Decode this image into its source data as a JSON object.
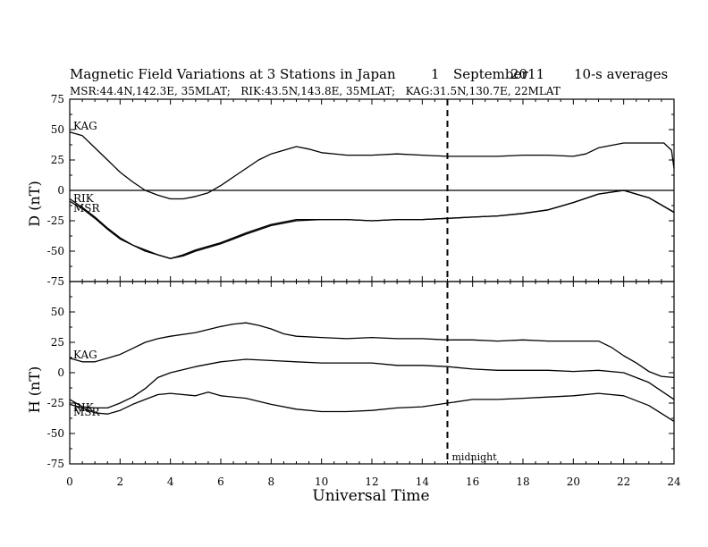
{
  "chart_data": [
    {
      "type": "line",
      "title": "Magnetic Field Variations at 3 Stations in Japan",
      "date_day": "1",
      "date_month": "September",
      "date_year": "2011",
      "averaging": "10-s averages",
      "subtitle": "MSR:44.4N,142.3E, 35MLAT;   RIK:43.5N,143.8E, 35MLAT;   KAG:31.5N,130.7E, 22MLAT",
      "xlabel": "Universal Time",
      "ylabel": "D (nT)",
      "xlim": [
        0,
        24
      ],
      "ylim": [
        -75,
        75
      ],
      "x_ticks": [
        0,
        2,
        4,
        6,
        8,
        10,
        12,
        14,
        16,
        18,
        20,
        22,
        24
      ],
      "y_ticks": [
        75,
        50,
        25,
        0,
        -25,
        -50,
        -75
      ],
      "zero_line": true,
      "grid": false,
      "series": [
        {
          "name": "KAG",
          "color": "#000000",
          "x": [
            0,
            0.5,
            1,
            1.5,
            2,
            2.5,
            3,
            3.5,
            4,
            4.5,
            5,
            5.5,
            6,
            6.5,
            7,
            7.5,
            8,
            8.5,
            9,
            9.5,
            10,
            11,
            12,
            13,
            14,
            15,
            16,
            17,
            18,
            19,
            20,
            20.5,
            21,
            22,
            23,
            23.6,
            23.9,
            24
          ],
          "values": [
            48,
            45,
            35,
            25,
            15,
            7,
            0,
            -4,
            -7,
            -7,
            -5,
            -2,
            4,
            11,
            18,
            25,
            30,
            33,
            36,
            34,
            31,
            29,
            29,
            30,
            29,
            28,
            28,
            28,
            29,
            29,
            28,
            30,
            35,
            39,
            39,
            39,
            33,
            18
          ]
        },
        {
          "name": "RIK",
          "color": "#000000",
          "x": [
            0,
            0.5,
            1,
            1.5,
            2,
            2.5,
            3,
            3.5,
            4,
            4.5,
            5,
            6,
            7,
            8,
            9,
            10,
            11,
            12,
            13,
            14,
            15,
            16,
            17,
            18,
            19,
            20,
            21,
            22,
            23,
            24
          ],
          "values": [
            -7,
            -14,
            -22,
            -31,
            -39,
            -45,
            -49,
            -53,
            -56,
            -53,
            -49,
            -43,
            -35,
            -28,
            -24,
            -24,
            -24,
            -25,
            -24,
            -24,
            -23,
            -22,
            -21,
            -19,
            -16,
            -10,
            -3,
            0,
            -6,
            -18
          ]
        },
        {
          "name": "MSR",
          "color": "#000000",
          "x": [
            0,
            0.5,
            1,
            1.5,
            2,
            2.5,
            3,
            3.5,
            4,
            4.5,
            5,
            6,
            7,
            8,
            9,
            10,
            11,
            12,
            13,
            14,
            15,
            16,
            17,
            18,
            19,
            20,
            21,
            22,
            23,
            24
          ],
          "values": [
            -9,
            -15,
            -23,
            -32,
            -40,
            -45,
            -50,
            -53,
            -56,
            -54,
            -50,
            -44,
            -36,
            -29,
            -25,
            -24,
            -24,
            -25,
            -24,
            -24,
            -23,
            -22,
            -21,
            -19,
            -16,
            -10,
            -3,
            0,
            -6,
            -18
          ]
        }
      ],
      "series_labels": [
        "KAG",
        "RIK",
        "MSR"
      ]
    },
    {
      "type": "line",
      "xlabel": "Universal Time",
      "ylabel": "H (nT)",
      "xlim": [
        0,
        24
      ],
      "ylim": [
        -75,
        75
      ],
      "x_ticks": [
        0,
        2,
        4,
        6,
        8,
        10,
        12,
        14,
        16,
        18,
        20,
        22,
        24
      ],
      "y_ticks": [
        75,
        50,
        25,
        0,
        -25,
        -50,
        -75
      ],
      "grid": false,
      "series": [
        {
          "name": "KAG",
          "color": "#000000",
          "x": [
            0,
            0.5,
            1,
            1.5,
            2,
            2.5,
            3,
            3.5,
            4,
            5,
            6,
            6.5,
            7,
            7.5,
            8,
            8.5,
            9,
            10,
            11,
            12,
            13,
            14,
            15,
            16,
            17,
            18,
            19,
            20,
            21,
            21.5,
            22,
            22.5,
            23,
            23.5,
            24
          ],
          "values": [
            12,
            9,
            9,
            12,
            15,
            20,
            25,
            28,
            30,
            33,
            38,
            40,
            41,
            39,
            36,
            32,
            30,
            29,
            28,
            29,
            28,
            28,
            27,
            27,
            26,
            27,
            26,
            26,
            26,
            21,
            14,
            8,
            1,
            -3,
            -4
          ]
        },
        {
          "name": "RIK",
          "color": "#000000",
          "x": [
            0,
            0.5,
            1,
            1.5,
            2,
            2.5,
            3,
            3.5,
            4,
            5,
            6,
            7,
            8,
            9,
            10,
            11,
            12,
            13,
            14,
            15,
            16,
            17,
            18,
            19,
            20,
            21,
            22,
            23,
            24
          ],
          "values": [
            -22,
            -28,
            -29,
            -29,
            -25,
            -20,
            -13,
            -4,
            0,
            5,
            9,
            11,
            10,
            9,
            8,
            8,
            8,
            6,
            6,
            5,
            3,
            2,
            2,
            2,
            1,
            2,
            0,
            -8,
            -22
          ]
        },
        {
          "name": "MSR",
          "color": "#000000",
          "x": [
            0,
            0.5,
            1,
            1.5,
            2,
            2.5,
            3,
            3.5,
            4,
            5,
            5.5,
            6,
            7,
            8,
            9,
            10,
            11,
            12,
            13,
            14,
            15,
            16,
            17,
            18,
            19,
            20,
            21,
            22,
            23,
            24
          ],
          "values": [
            -26,
            -29,
            -33,
            -34,
            -31,
            -26,
            -22,
            -18,
            -17,
            -19,
            -16,
            -19,
            -21,
            -26,
            -30,
            -32,
            -32,
            -31,
            -29,
            -28,
            -25,
            -22,
            -22,
            -21,
            -20,
            -19,
            -17,
            -19,
            -27,
            -40
          ]
        }
      ],
      "series_labels": [
        "KAG",
        "RIK",
        "MSR"
      ],
      "annotations": [
        {
          "text": "midnight",
          "x": 15,
          "y": -70
        }
      ],
      "vertical_marker": {
        "x": 15,
        "style": "dashed",
        "label": "midnight"
      }
    }
  ]
}
